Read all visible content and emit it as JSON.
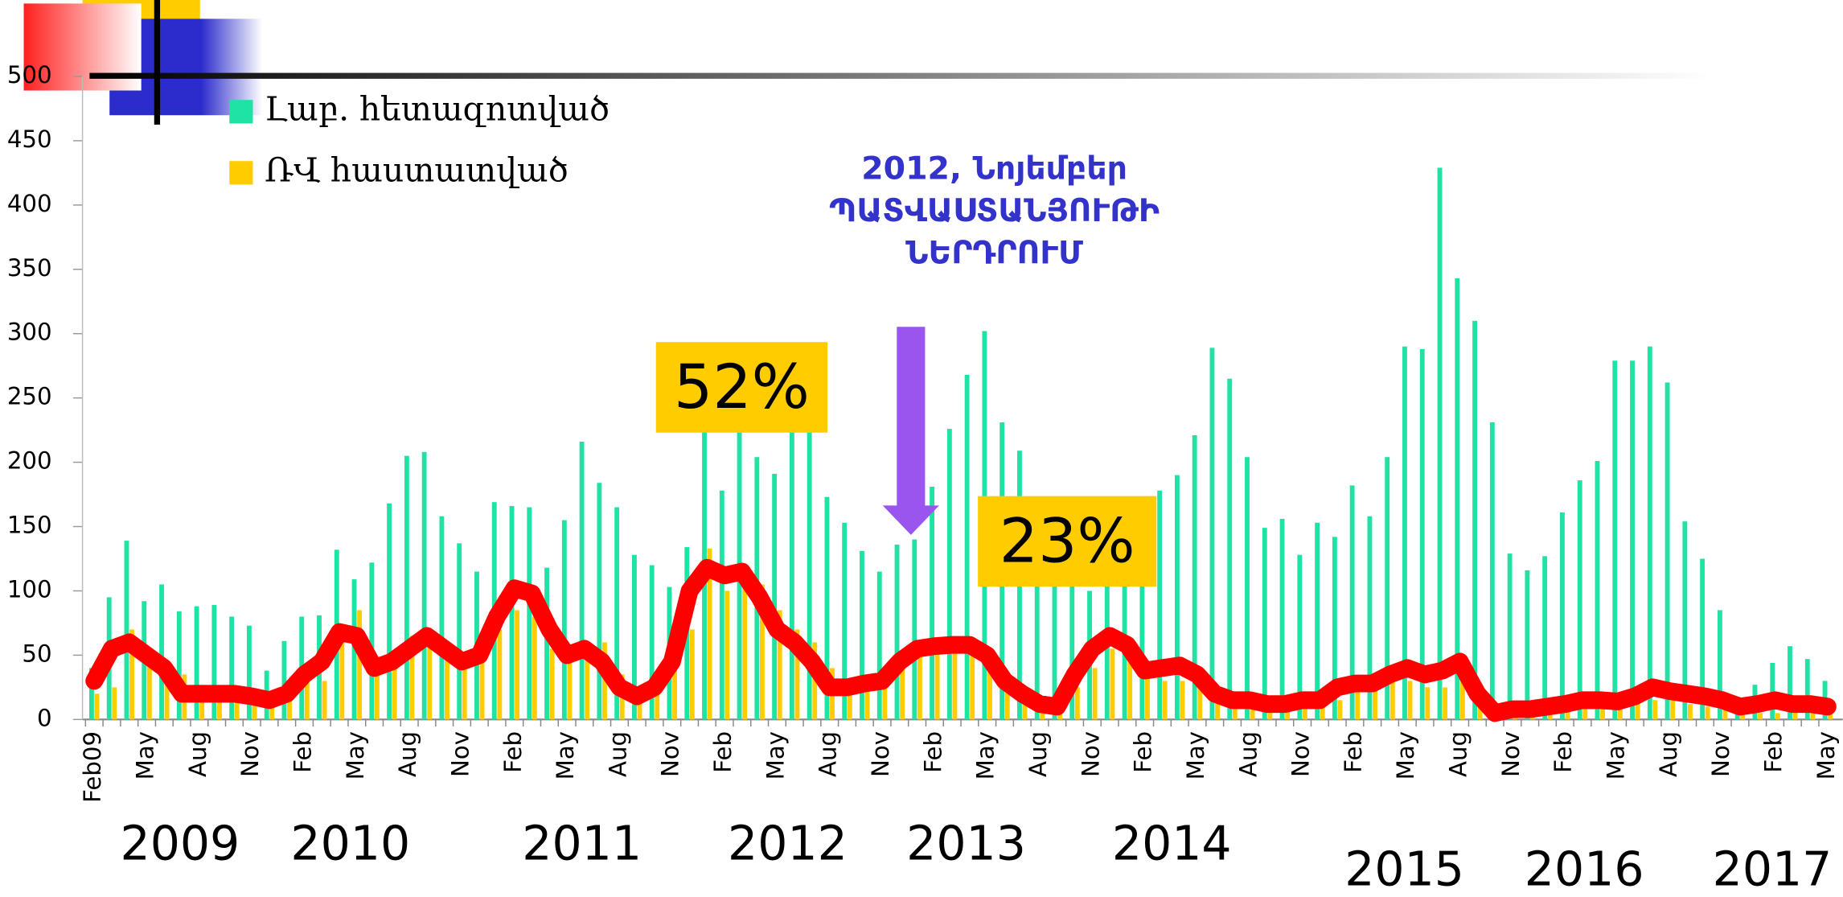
{
  "chart_data": {
    "type": "bar",
    "categories": [
      "Feb09",
      null,
      null,
      "May",
      null,
      null,
      "Aug",
      null,
      null,
      "Nov",
      null,
      null,
      "Feb",
      null,
      null,
      "May",
      null,
      null,
      "Aug",
      null,
      null,
      "Nov",
      null,
      null,
      "Feb",
      null,
      null,
      "May",
      null,
      null,
      "Aug",
      null,
      null,
      "Nov",
      null,
      null,
      "Feb",
      null,
      null,
      "May",
      null,
      null,
      "Aug",
      null,
      null,
      "Nov",
      null,
      null,
      "Feb",
      null,
      null,
      "May",
      null,
      null,
      "Aug",
      null,
      null,
      "Nov",
      null,
      null,
      "Feb",
      null,
      null,
      "May",
      null,
      null,
      "Aug",
      null,
      null,
      "Nov",
      null,
      null,
      "Feb",
      null,
      null,
      "May",
      null,
      null,
      "Aug",
      null,
      null,
      "Nov",
      null,
      null,
      "Feb",
      null,
      null,
      "May",
      null,
      null,
      "Aug",
      null,
      null,
      "Nov",
      null,
      null,
      "Feb",
      null,
      null,
      "May"
    ],
    "series": [
      {
        "name": "Լաբ. հետազոտված",
        "color": "#1ee3a4",
        "values": [
          40,
          95,
          139,
          92,
          105,
          84,
          88,
          89,
          80,
          73,
          38,
          61,
          80,
          81,
          132,
          109,
          122,
          168,
          205,
          208,
          158,
          137,
          115,
          169,
          166,
          165,
          118,
          155,
          216,
          184,
          165,
          128,
          120,
          103,
          134,
          230,
          178,
          230,
          204,
          191,
          230,
          230,
          173,
          153,
          131,
          115,
          136,
          140,
          181,
          226,
          268,
          302,
          231,
          209,
          110,
          120,
          110,
          100,
          130,
          150,
          157,
          178,
          190,
          221,
          289,
          265,
          204,
          149,
          156,
          128,
          153,
          142,
          182,
          158,
          204,
          290,
          288,
          429,
          343,
          310,
          231,
          129,
          116,
          127,
          161,
          186,
          201,
          279,
          279,
          290,
          262,
          154,
          125,
          85,
          10,
          27,
          44,
          57,
          47,
          30
        ]
      },
      {
        "name": "ՌՎ հաստատված",
        "color": "#ffcc00",
        "values": [
          20,
          25,
          70,
          55,
          45,
          35,
          15,
          18,
          15,
          12,
          10,
          20,
          30,
          30,
          60,
          85,
          45,
          50,
          65,
          60,
          55,
          45,
          45,
          70,
          85,
          80,
          55,
          45,
          55,
          60,
          35,
          20,
          25,
          40,
          70,
          133,
          100,
          110,
          105,
          85,
          70,
          60,
          40,
          30,
          25,
          30,
          45,
          55,
          55,
          58,
          60,
          55,
          35,
          20,
          15,
          10,
          25,
          40,
          55,
          55,
          45,
          30,
          30,
          35,
          25,
          15,
          12,
          12,
          12,
          10,
          12,
          15,
          25,
          25,
          30,
          30,
          25,
          25,
          35,
          10,
          5,
          3,
          5,
          5,
          8,
          10,
          12,
          12,
          12,
          15,
          15,
          12,
          10,
          8,
          5,
          5,
          5,
          8,
          5,
          5
        ]
      },
      {
        "type": "line",
        "color": "#ff0000",
        "values": [
          30,
          55,
          60,
          50,
          40,
          20,
          20,
          20,
          20,
          18,
          15,
          20,
          35,
          45,
          68,
          65,
          40,
          45,
          55,
          65,
          55,
          45,
          50,
          80,
          102,
          98,
          70,
          50,
          55,
          45,
          25,
          18,
          25,
          45,
          100,
          118,
          112,
          115,
          95,
          70,
          60,
          45,
          25,
          25,
          28,
          30,
          45,
          55,
          57,
          58,
          58,
          50,
          30,
          20,
          12,
          10,
          35,
          55,
          65,
          58,
          38,
          40,
          42,
          35,
          20,
          15,
          15,
          12,
          12,
          15,
          15,
          25,
          28,
          28,
          35,
          40,
          35,
          38,
          45,
          20,
          5,
          8,
          8,
          10,
          12,
          15,
          15,
          14,
          18,
          25,
          22,
          20,
          18,
          15,
          10,
          12,
          15,
          12,
          12,
          10
        ]
      }
    ],
    "ylim": [
      0,
      500
    ],
    "yticks": [
      0,
      50,
      100,
      150,
      200,
      250,
      300,
      350,
      400,
      450,
      500
    ],
    "annotations": {
      "arrow_text": [
        "2012, Նոյեմբեր",
        "ՊԱՏՎԱՍՏԱՆՅՈՒԹԻ",
        "ՆԵՐԴՐՈՒՄ"
      ],
      "boxes": [
        "52%",
        "23%"
      ]
    },
    "years": [
      "2009",
      "2010",
      "2011",
      "2012",
      "2013",
      "2014",
      "2015",
      "2016",
      "2017"
    ]
  }
}
